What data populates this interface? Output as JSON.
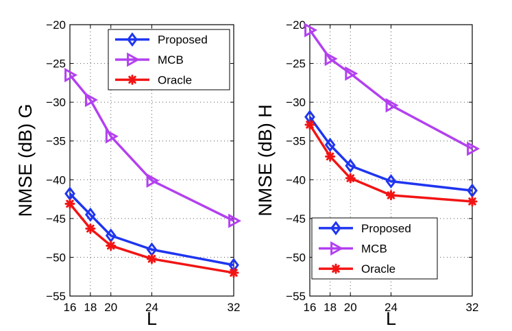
{
  "chart_data": [
    {
      "type": "line",
      "title": "",
      "xlabel": "L",
      "ylabel": "NMSE (dB) G",
      "x": [
        16,
        18,
        20,
        24,
        32
      ],
      "xticks": [
        "16",
        "18",
        "20",
        "24",
        "32"
      ],
      "xlim": [
        16,
        32
      ],
      "ylim": [
        -55,
        -20
      ],
      "yticks": [
        "-55",
        "-50",
        "-45",
        "-40",
        "-35",
        "-30",
        "-25",
        "-20"
      ],
      "grid": true,
      "legend_position": "top-right",
      "series": [
        {
          "name": "Proposed",
          "color": "#1f35f0",
          "marker": "diamond",
          "values": [
            -41.8,
            -44.5,
            -47.2,
            -49.0,
            -51.0
          ]
        },
        {
          "name": "MCB",
          "color": "#b340f0",
          "marker": "triangle-right",
          "values": [
            -26.5,
            -29.7,
            -34.4,
            -40.1,
            -45.3
          ]
        },
        {
          "name": "Oracle",
          "color": "#f21414",
          "marker": "asterisk",
          "values": [
            -43.1,
            -46.3,
            -48.5,
            -50.2,
            -52.0
          ]
        }
      ]
    },
    {
      "type": "line",
      "title": "",
      "xlabel": "L",
      "ylabel": "NMSE (dB) H",
      "x": [
        16,
        18,
        20,
        24,
        32
      ],
      "xticks": [
        "16",
        "18",
        "20",
        "24",
        "32"
      ],
      "xlim": [
        16,
        32
      ],
      "ylim": [
        -55,
        -20
      ],
      "yticks": [
        "-55",
        "-50",
        "-45",
        "-40",
        "-35",
        "-30",
        "-25",
        "-20"
      ],
      "grid": true,
      "legend_position": "bottom-left",
      "series": [
        {
          "name": "Proposed",
          "color": "#1f35f0",
          "marker": "diamond",
          "values": [
            -31.9,
            -35.5,
            -38.2,
            -40.2,
            -41.4
          ]
        },
        {
          "name": "MCB",
          "color": "#b340f0",
          "marker": "triangle-right",
          "values": [
            -20.7,
            -24.4,
            -26.3,
            -30.4,
            -36.0
          ]
        },
        {
          "name": "Oracle",
          "color": "#f21414",
          "marker": "asterisk",
          "values": [
            -32.9,
            -37.0,
            -39.8,
            -42.0,
            -42.8
          ]
        }
      ]
    }
  ]
}
